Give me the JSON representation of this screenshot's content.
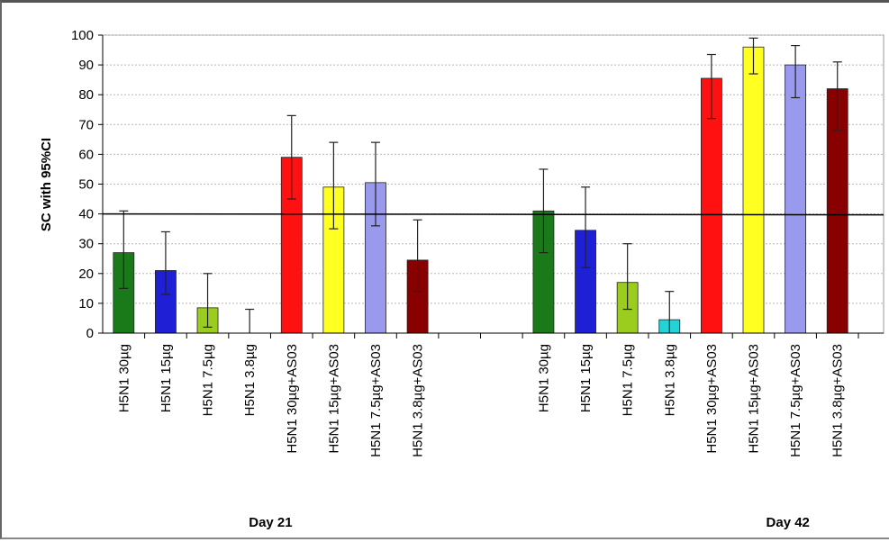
{
  "chart_data": {
    "type": "bar",
    "ylabel": "SC with 95%CI",
    "ylim": [
      0,
      100
    ],
    "yticks": [
      0,
      10,
      20,
      30,
      40,
      50,
      60,
      70,
      80,
      90,
      100
    ],
    "grid": true,
    "reference_line": 40,
    "groups": [
      {
        "label": "Day 21",
        "bars": [
          {
            "category": "H5N1 30µg",
            "value": 27,
            "ci": [
              15,
              41
            ],
            "color": "#1a7a1a"
          },
          {
            "category": "H5N1 15µg",
            "value": 21,
            "ci": [
              13,
              34
            ],
            "color": "#1f1fd6"
          },
          {
            "category": "H5N1 7.5µg",
            "value": 8.5,
            "ci": [
              2,
              20
            ],
            "color": "#9acd1e"
          },
          {
            "category": "H5N1 3.8µg",
            "value": 0,
            "ci": [
              0,
              8
            ],
            "color": "#22d3d8"
          },
          {
            "category": "H5N1 30µg+AS03",
            "value": 59,
            "ci": [
              45,
              73
            ],
            "color": "#ff1111"
          },
          {
            "category": "H5N1 15µg+AS03",
            "value": 49,
            "ci": [
              35,
              64
            ],
            "color": "#ffff22"
          },
          {
            "category": "H5N1 7.5µg+AS03",
            "value": 50.5,
            "ci": [
              36,
              64
            ],
            "color": "#9999ee"
          },
          {
            "category": "H5N1 3.8µg+AS03",
            "value": 24.5,
            "ci": [
              14,
              38
            ],
            "color": "#880000"
          }
        ]
      },
      {
        "label": "Day 42",
        "bars": [
          {
            "category": "H5N1 30µg",
            "value": 41,
            "ci": [
              27,
              55
            ],
            "color": "#1a7a1a"
          },
          {
            "category": "H5N1 15µg",
            "value": 34.5,
            "ci": [
              22,
              49
            ],
            "color": "#1f1fd6"
          },
          {
            "category": "H5N1 7.5µg",
            "value": 17,
            "ci": [
              8,
              30
            ],
            "color": "#9acd1e"
          },
          {
            "category": "H5N1 3.8µg",
            "value": 4.5,
            "ci": [
              0,
              14
            ],
            "color": "#22d3d8"
          },
          {
            "category": "H5N1 30µg+AS03",
            "value": 85.5,
            "ci": [
              72,
              93.5
            ],
            "color": "#ff1111"
          },
          {
            "category": "H5N1 15µg+AS03",
            "value": 96,
            "ci": [
              87,
              99
            ],
            "color": "#ffff22"
          },
          {
            "category": "H5N1 7.5µg+AS03",
            "value": 90,
            "ci": [
              79,
              96.5
            ],
            "color": "#9999ee"
          },
          {
            "category": "H5N1 3.8µg+AS03",
            "value": 82,
            "ci": [
              68,
              91
            ],
            "color": "#880000"
          }
        ]
      }
    ]
  }
}
